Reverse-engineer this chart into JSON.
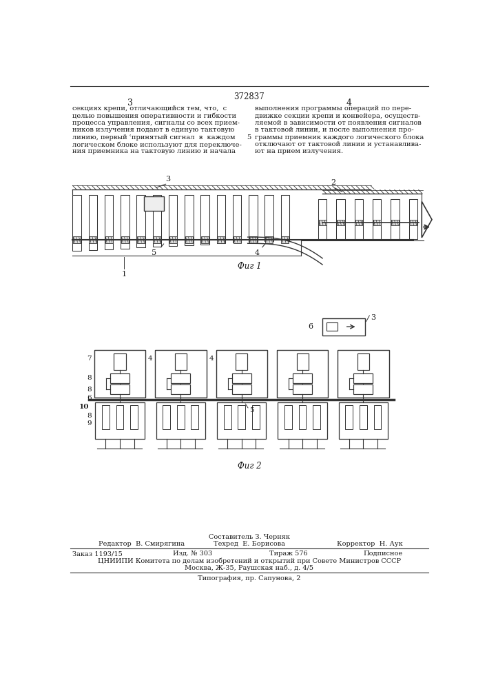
{
  "page_number": "372837",
  "col_left": "3",
  "col_right": "4",
  "fig1_label": "Фиг 1",
  "fig2_label": "Фиг 2",
  "bg_color": "#ffffff",
  "text_color": "#1a1a1a",
  "line_color": "#333333"
}
